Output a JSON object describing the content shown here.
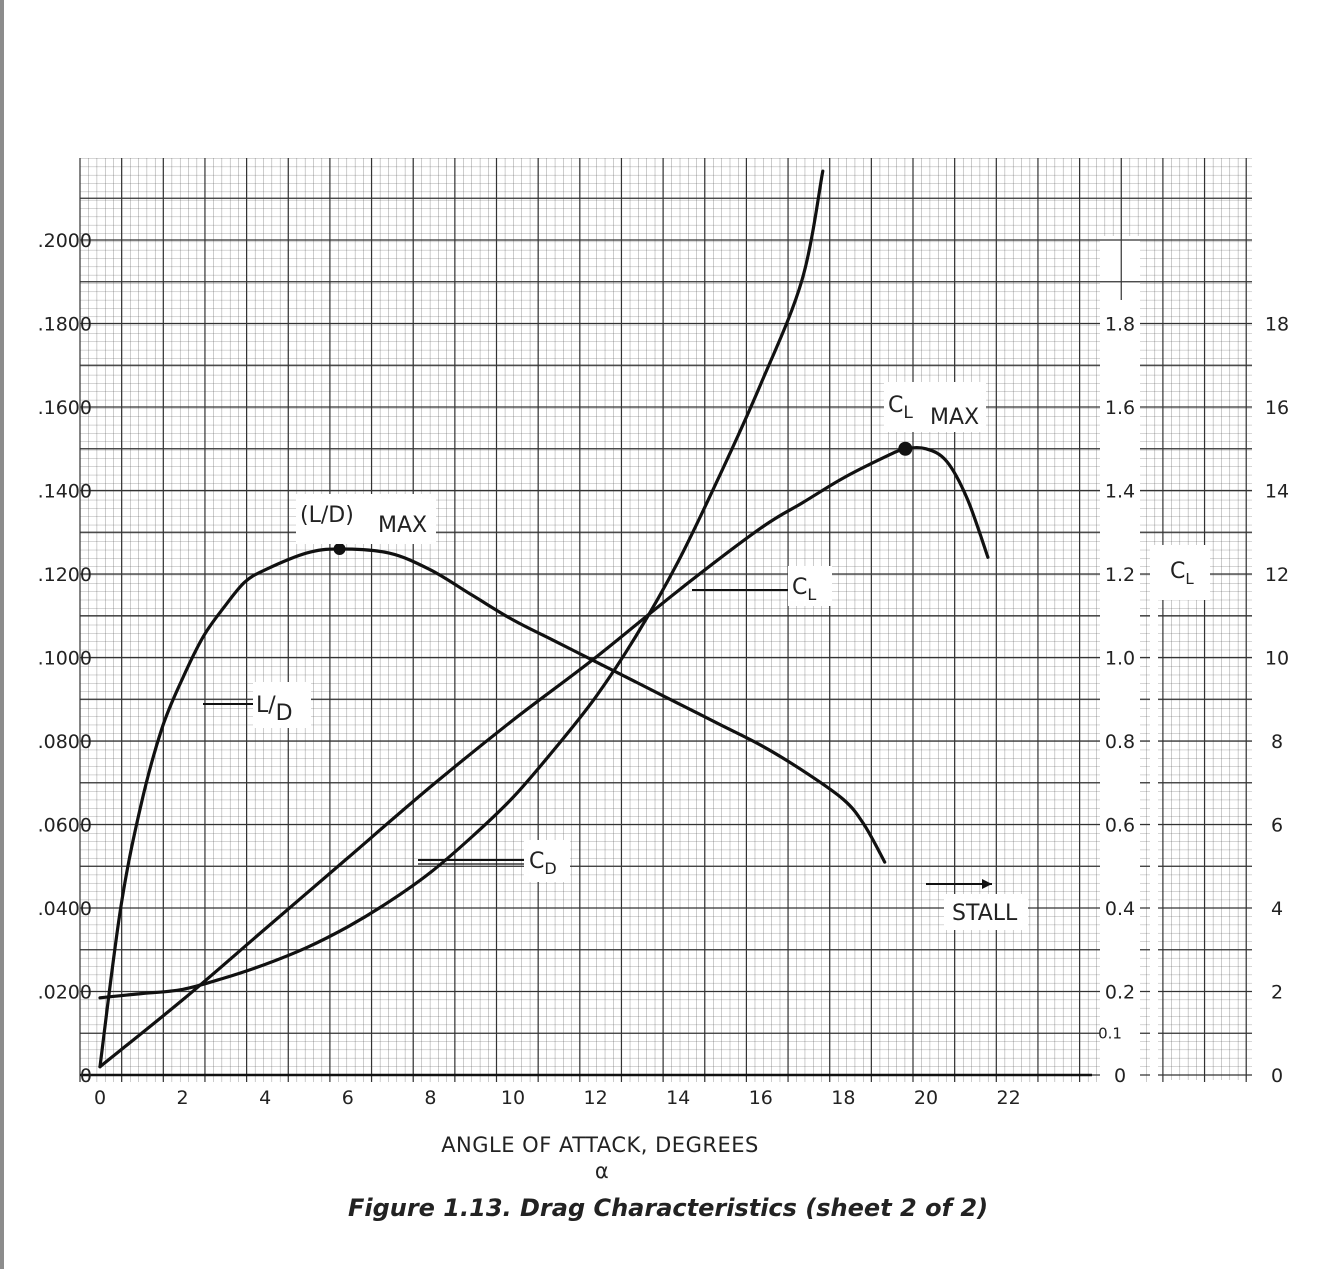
{
  "chart_data": {
    "type": "line",
    "title": "Figure 1.13. Drag Characteristics (sheet 2 of 2)",
    "xlabel": "ANGLE OF ATTACK, DEGREES",
    "xlabel_symbol": "α",
    "xlim": [
      0,
      24
    ],
    "x_ticks": [
      "0",
      "2",
      "4",
      "6",
      "8",
      "10",
      "12",
      "14",
      "16",
      "18",
      "20",
      "22"
    ],
    "left_axis": {
      "ylim": [
        0,
        0.2
      ],
      "tick_labels": [
        "0",
        ".0200",
        ".0400",
        ".0600",
        ".0800",
        ".1000",
        ".1200",
        ".1400",
        ".1600",
        ".1800",
        ".2000"
      ]
    },
    "cl_axis": {
      "ylim": [
        0,
        2.0
      ],
      "tick_labels": [
        "0",
        "0.2",
        "0.4",
        "0.6",
        "0.8",
        "1.0",
        "1.2",
        "1.4",
        "1.6",
        "1.8"
      ],
      "extra_label": "0.1"
    },
    "ld_axis": {
      "ylim": [
        0,
        20
      ],
      "tick_labels": [
        "0",
        "2",
        "4",
        "6",
        "8",
        "10",
        "12",
        "14",
        "16",
        "18"
      ],
      "label": "CL"
    },
    "series": [
      {
        "name": "CL",
        "axis": "cl_axis",
        "x": [
          0,
          2,
          4,
          6,
          8,
          10,
          12,
          14,
          16,
          17,
          18,
          19,
          19.5,
          20,
          20.5,
          21,
          21.5
        ],
        "y": [
          0.02,
          0.18,
          0.35,
          0.52,
          0.69,
          0.85,
          1.0,
          1.16,
          1.31,
          1.37,
          1.43,
          1.48,
          1.5,
          1.5,
          1.47,
          1.38,
          1.24
        ]
      },
      {
        "name": "CD",
        "axis": "left_axis",
        "x": [
          0,
          0.5,
          1,
          2,
          3,
          4,
          5,
          6,
          7,
          8,
          9,
          10,
          11,
          12,
          13,
          14,
          15,
          16,
          17,
          17.5
        ],
        "y": [
          0.0185,
          0.019,
          0.0195,
          0.0205,
          0.0232,
          0.0265,
          0.0305,
          0.0355,
          0.0415,
          0.0485,
          0.057,
          0.0665,
          0.078,
          0.0905,
          0.1055,
          0.123,
          0.1435,
          0.1655,
          0.1905,
          0.2165
        ]
      },
      {
        "name": "L/D",
        "axis": "ld_axis",
        "x": [
          0,
          0.5,
          1,
          1.5,
          2,
          2.5,
          3,
          3.5,
          4,
          5,
          5.8,
          7,
          8,
          9,
          10,
          11,
          12,
          13,
          14,
          15,
          16,
          17,
          18,
          18.5,
          19
        ],
        "y": [
          0.2,
          4.0,
          6.5,
          8.3,
          9.5,
          10.5,
          11.2,
          11.8,
          12.1,
          12.5,
          12.6,
          12.5,
          12.1,
          11.5,
          10.9,
          10.4,
          9.9,
          9.4,
          8.9,
          8.4,
          7.9,
          7.3,
          6.6,
          6.0,
          5.1
        ]
      }
    ],
    "annotations": {
      "cl_label": "CL",
      "cd_label": "CD",
      "ld_label": "L/D",
      "ld_max_label": "(L/D)",
      "ld_max_sub": "MAX",
      "cl_max_label": "CL",
      "cl_max_sub": "MAX",
      "stall_label": "STALL"
    },
    "grid": true
  }
}
